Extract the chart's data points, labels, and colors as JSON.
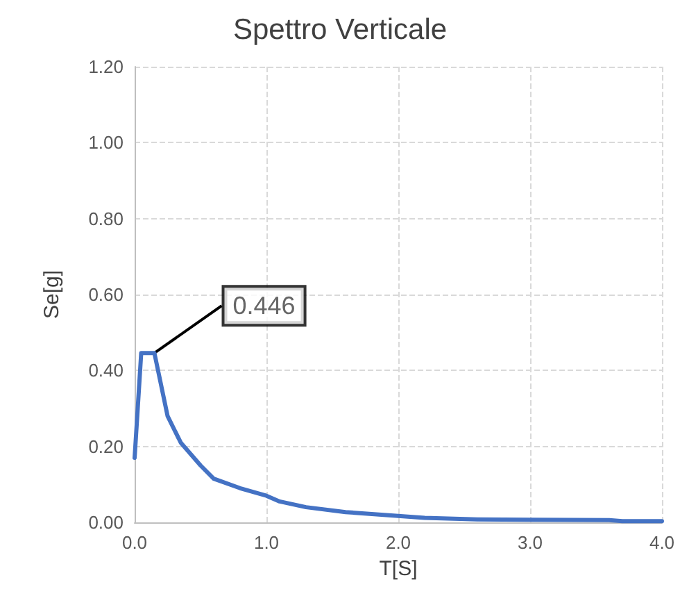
{
  "chart_data": {
    "type": "line",
    "title": "Spettro Verticale",
    "xlabel": "T[S]",
    "ylabel": "Se[g]",
    "x": [
      0,
      0.05,
      0.15,
      0.25,
      0.35,
      0.5,
      0.6,
      0.8,
      1.0,
      1.1,
      1.3,
      1.6,
      2.0,
      2.2,
      2.6,
      3.0,
      3.6,
      3.7,
      4.0
    ],
    "series": [
      {
        "color": "#4472c4",
        "values": [
          0.17,
          0.446,
          0.446,
          0.28,
          0.21,
          0.15,
          0.115,
          0.09,
          0.07,
          0.055,
          0.04,
          0.027,
          0.017,
          0.012,
          0.008,
          0.007,
          0.006,
          0.003,
          0.003
        ]
      }
    ],
    "annotations": [
      {
        "text": "0.446",
        "x": 0.15,
        "y": 0.446
      }
    ],
    "xlim": [
      0,
      4
    ],
    "xticks": [
      {
        "value": 0,
        "label": "0.0"
      },
      {
        "value": 1,
        "label": "1.0"
      },
      {
        "value": 2,
        "label": "2.0"
      },
      {
        "value": 3,
        "label": "3.0"
      },
      {
        "value": 4,
        "label": "4.0"
      }
    ],
    "ylim": [
      0,
      1.2
    ],
    "yticks": [
      {
        "value": 0,
        "label": "0.00"
      },
      {
        "value": 0.2,
        "label": "0.20"
      },
      {
        "value": 0.4,
        "label": "0.40"
      },
      {
        "value": 0.6,
        "label": "0.60"
      },
      {
        "value": 0.8,
        "label": "0.80"
      },
      {
        "value": 1.0,
        "label": "1.00"
      },
      {
        "value": 1.2,
        "label": "1.20"
      }
    ],
    "grid": true,
    "marker": "none",
    "line_style": "solid"
  }
}
